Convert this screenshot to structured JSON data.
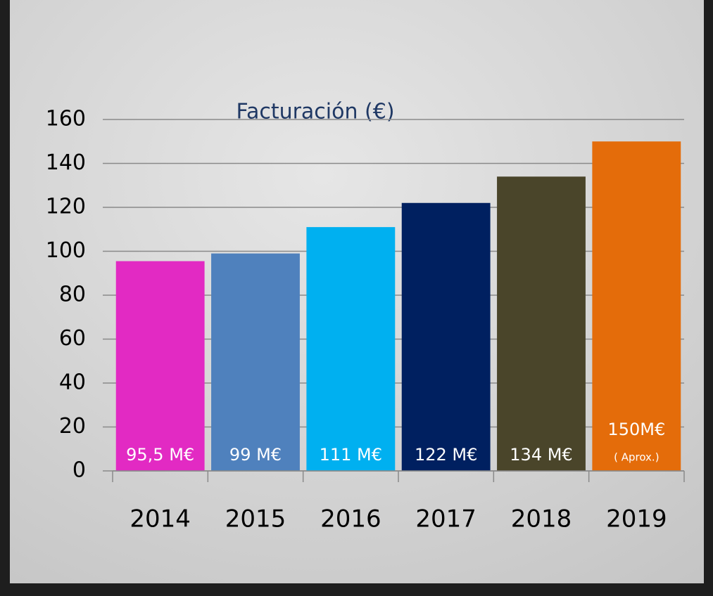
{
  "chart_data": {
    "type": "bar",
    "title": "Facturación (€)",
    "categories": [
      "2014",
      "2015",
      "2016",
      "2017",
      "2018",
      "2019"
    ],
    "values": [
      95.5,
      99,
      111,
      122,
      134,
      150
    ],
    "value_labels": [
      "95,5 M€",
      "99 M€",
      "111 M€",
      "122 M€",
      "134 M€",
      "150M€"
    ],
    "colors": [
      "#e22ac3",
      "#4f81bd",
      "#00b0f0",
      "#002060",
      "#4a452a",
      "#e46c0a"
    ],
    "annotation": "( Aprox.)",
    "ylim": [
      0,
      160
    ],
    "yticks": [
      0,
      20,
      40,
      60,
      80,
      100,
      120,
      140,
      160
    ],
    "grid": true
  }
}
